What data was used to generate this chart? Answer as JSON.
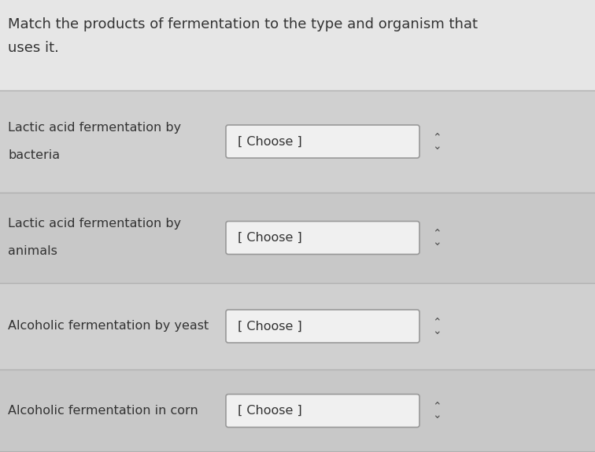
{
  "title_line1": "Match the products of fermentation to the type and organism that",
  "title_line2": "uses it.",
  "background_color": "#d8d8d8",
  "title_bg_color": "#e6e6e6",
  "row_bg_even": "#d0d0d0",
  "row_bg_odd": "#c8c8c8",
  "dropdown_box_color": "#f0f0f0",
  "dropdown_border_color": "#999999",
  "text_color": "#333333",
  "divider_color": "#b0b0b0",
  "rows": [
    {
      "label_line1": "Lactic acid fermentation by",
      "label_line2": "bacteria",
      "dropdown": "[ Choose ]"
    },
    {
      "label_line1": "Lactic acid fermentation by",
      "label_line2": "animals",
      "dropdown": "[ Choose ]"
    },
    {
      "label_line1": "Alcoholic fermentation by yeast",
      "label_line2": "",
      "dropdown": "[ Choose ]"
    },
    {
      "label_line1": "Alcoholic fermentation in corn",
      "label_line2": "",
      "dropdown": "[ Choose ]"
    }
  ],
  "label_fontsize": 11.5,
  "dropdown_fontsize": 11.5,
  "title_fontsize": 13.0,
  "fig_width": 7.56,
  "fig_height": 5.75,
  "dpi": 100
}
